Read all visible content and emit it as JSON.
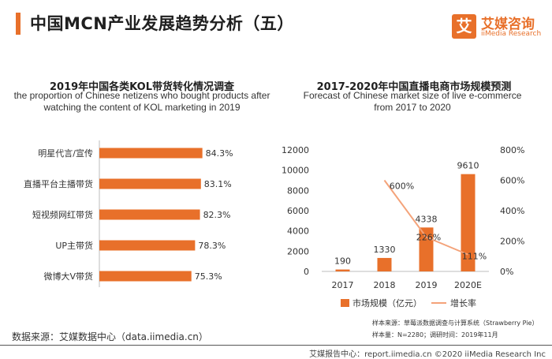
{
  "header": {
    "title": "中国MCN产业发展趋势分析（五）",
    "logo_mark": "艾",
    "logo_cn": "艾媒咨询",
    "logo_en": "iiMedia Research"
  },
  "colors": {
    "accent": "#e8702a",
    "bar": "#e8702a",
    "line": "#f4a37a"
  },
  "chart_data": [
    {
      "type": "bar",
      "orientation": "horizontal",
      "title": "2019年中国各类KOL带货转化情况调查",
      "subtitle": "the proportion of Chinese netizens who bought products after watching the content of KOL marketing in 2019",
      "categories": [
        "明星代言/宣传",
        "直播平台主播带货",
        "短视频网红带货",
        "UP主带货",
        "微博大V带货"
      ],
      "values": [
        84.3,
        83.1,
        82.3,
        78.3,
        75.3
      ],
      "labels": [
        "84.3%",
        "83.1%",
        "82.3%",
        "78.3%",
        "75.3%"
      ],
      "xlim": [
        0,
        100
      ]
    },
    {
      "type": "bar",
      "title": "2017-2020年中国直播电商市场规模预测",
      "subtitle": "Forecast of Chinese market size of live e-commerce from 2017 to 2020",
      "categories": [
        "2017",
        "2018",
        "2019",
        "2020E"
      ],
      "series": [
        {
          "name": "市场规模（亿元）",
          "type": "bar",
          "axis": "left",
          "values": [
            190,
            1330,
            4338,
            9610
          ]
        },
        {
          "name": "增长率",
          "type": "line",
          "axis": "right",
          "values": [
            null,
            600,
            226,
            111
          ],
          "labels": [
            "",
            "600%",
            "226%",
            "111%"
          ]
        }
      ],
      "ylim": [
        0,
        12000
      ],
      "yticks": [
        "0",
        "2000",
        "4000",
        "6000",
        "8000",
        "10000",
        "12000"
      ],
      "y2lim": [
        0,
        800
      ],
      "y2ticks": [
        "0%",
        "200%",
        "400%",
        "600%",
        "800%"
      ],
      "legend_position": "bottom"
    }
  ],
  "notes": {
    "sample_source": "样本来源：草莓派数据调查与计算系统（Strawberry Pie）",
    "sample_size": "样本量：N=2280；调研时间：2019年11月"
  },
  "source": "数据来源：艾媒数据中心（data.iimedia.cn）",
  "footer": "艾媒报告中心：report.iimedia.cn  ©2020 iiMedia Research Inc"
}
